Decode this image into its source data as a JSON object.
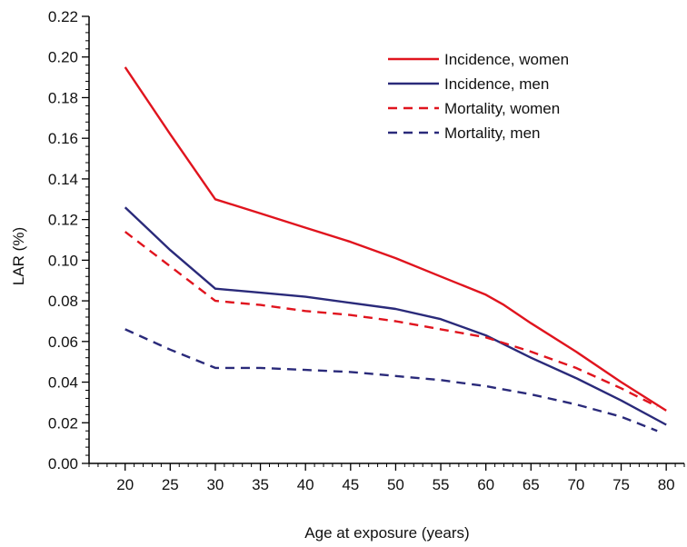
{
  "chart_data": {
    "type": "line",
    "title": "",
    "xlabel": "Age at exposure (years)",
    "ylabel": "LAR (%)",
    "xlim": [
      16,
      82
    ],
    "ylim": [
      0,
      0.22
    ],
    "xticks": [
      20,
      25,
      30,
      35,
      40,
      45,
      50,
      55,
      60,
      65,
      70,
      75,
      80
    ],
    "yticks": [
      0.0,
      0.02,
      0.04,
      0.06,
      0.08,
      0.1,
      0.12,
      0.14,
      0.16,
      0.18,
      0.2,
      0.22
    ],
    "xtick_labels": [
      "20",
      "25",
      "30",
      "35",
      "40",
      "45",
      "50",
      "55",
      "60",
      "65",
      "70",
      "75",
      "80"
    ],
    "ytick_labels": [
      "0.00",
      "0.02",
      "0.04",
      "0.06",
      "0.08",
      "0.10",
      "0.12",
      "0.14",
      "0.16",
      "0.18",
      "0.20",
      "0.22"
    ],
    "legend_position": "top-right",
    "grid": false,
    "series": [
      {
        "name": "Incidence, women",
        "color": "#e0141e",
        "dash": "solid",
        "x": [
          20,
          25,
          30,
          35,
          40,
          45,
          50,
          55,
          60,
          62,
          65,
          70,
          75,
          80
        ],
        "y": [
          0.195,
          0.162,
          0.13,
          0.123,
          0.116,
          0.109,
          0.101,
          0.092,
          0.083,
          0.078,
          0.069,
          0.055,
          0.04,
          0.026
        ]
      },
      {
        "name": "Incidence, men",
        "color": "#2a2a7a",
        "dash": "solid",
        "x": [
          20,
          25,
          30,
          35,
          40,
          45,
          50,
          55,
          60,
          65,
          70,
          75,
          80
        ],
        "y": [
          0.126,
          0.105,
          0.086,
          0.084,
          0.082,
          0.079,
          0.076,
          0.071,
          0.063,
          0.052,
          0.042,
          0.031,
          0.019
        ]
      },
      {
        "name": "Mortality, women",
        "color": "#e0141e",
        "dash": "dashed",
        "x": [
          20,
          25,
          30,
          35,
          40,
          45,
          50,
          55,
          60,
          65,
          70,
          75,
          79
        ],
        "y": [
          0.114,
          0.097,
          0.08,
          0.078,
          0.075,
          0.073,
          0.07,
          0.066,
          0.062,
          0.055,
          0.047,
          0.037,
          0.028
        ]
      },
      {
        "name": "Mortality, men",
        "color": "#2a2a7a",
        "dash": "dashed",
        "x": [
          20,
          25,
          30,
          35,
          40,
          45,
          50,
          55,
          60,
          65,
          70,
          75,
          79
        ],
        "y": [
          0.066,
          0.056,
          0.047,
          0.047,
          0.046,
          0.045,
          0.043,
          0.041,
          0.038,
          0.034,
          0.029,
          0.023,
          0.016
        ]
      }
    ]
  }
}
